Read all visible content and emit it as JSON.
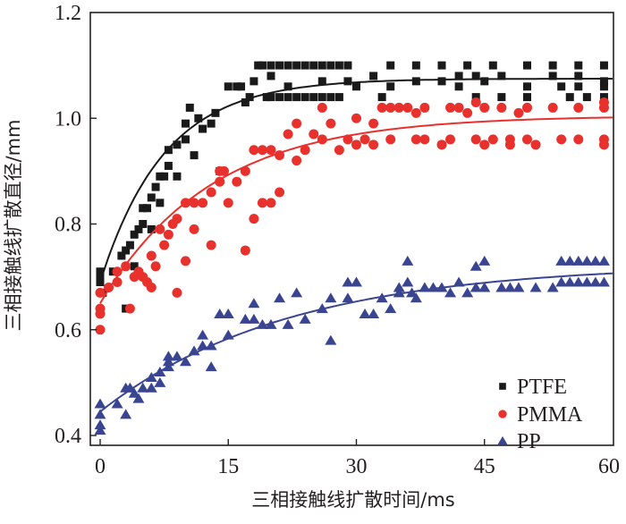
{
  "chart_data": {
    "type": "scatter",
    "title": "",
    "xlabel": "三相接触线扩散时间/ms",
    "ylabel": "三相接触线扩散直径/mm",
    "xlim": [
      -1,
      60
    ],
    "ylim": [
      0.4,
      1.2
    ],
    "xticks": [
      0,
      15,
      30,
      45,
      60
    ],
    "xtick_labels": [
      "0",
      "15",
      "30",
      "45",
      "60"
    ],
    "yticks": [
      0.4,
      0.6,
      0.8,
      1.0,
      1.2
    ],
    "ytick_labels": [
      "0.4",
      "0.6",
      "0.8",
      "1.0",
      "1.2"
    ],
    "grid": false,
    "legend": {
      "position": "bottom-right",
      "entries": [
        "PTFE",
        "PMMA",
        "PP"
      ]
    },
    "series": [
      {
        "name": "PTFE",
        "marker": "square",
        "color": "#1a1a1a",
        "fit": {
          "type": "exponential-rise",
          "y0": 0.69,
          "plateau": 1.075,
          "tau": 7.5
        },
        "points": [
          [
            0,
            0.71
          ],
          [
            0,
            0.7
          ],
          [
            0,
            0.69
          ],
          [
            0.3,
            0.67
          ],
          [
            1.5,
            0.71
          ],
          [
            2.5,
            0.74
          ],
          [
            3,
            0.75
          ],
          [
            3,
            0.64
          ],
          [
            3.5,
            0.76
          ],
          [
            4,
            0.78
          ],
          [
            4,
            0.72
          ],
          [
            4.5,
            0.79
          ],
          [
            5,
            0.8
          ],
          [
            5,
            0.83
          ],
          [
            5.5,
            0.83
          ],
          [
            6,
            0.85
          ],
          [
            6,
            0.79
          ],
          [
            6.5,
            0.87
          ],
          [
            7,
            0.89
          ],
          [
            7,
            0.84
          ],
          [
            7.5,
            0.89
          ],
          [
            8,
            0.91
          ],
          [
            8,
            0.94
          ],
          [
            9,
            0.95
          ],
          [
            9,
            0.89
          ],
          [
            10,
            0.96
          ],
          [
            10,
            0.99
          ],
          [
            10.5,
            1.02
          ],
          [
            11,
            0.93
          ],
          [
            11.5,
            1.0
          ],
          [
            12,
            0.98
          ],
          [
            13,
            0.99
          ],
          [
            13.5,
            1.01
          ],
          [
            14,
            0.9
          ],
          [
            15,
            1.06
          ],
          [
            16,
            1.06
          ],
          [
            16.5,
            1.06
          ],
          [
            17,
            1.03
          ],
          [
            17.5,
            1.04
          ],
          [
            18,
            1.07
          ],
          [
            18.5,
            1.1
          ],
          [
            19,
            1.1
          ],
          [
            19.5,
            1.04
          ],
          [
            20,
            1.1
          ],
          [
            21,
            1.1
          ],
          [
            22,
            1.1
          ],
          [
            23,
            1.1
          ],
          [
            24,
            1.1
          ],
          [
            25,
            1.1
          ],
          [
            26,
            1.1
          ],
          [
            27,
            1.1
          ],
          [
            28,
            1.1
          ],
          [
            29,
            1.1
          ],
          [
            20,
            1.04
          ],
          [
            21,
            1.04
          ],
          [
            22,
            1.04
          ],
          [
            23,
            1.04
          ],
          [
            24,
            1.04
          ],
          [
            25,
            1.04
          ],
          [
            26,
            1.04
          ],
          [
            27,
            1.04
          ],
          [
            28,
            1.04
          ],
          [
            20,
            1.08
          ],
          [
            22,
            1.06
          ],
          [
            26,
            1.07
          ],
          [
            29,
            1.07
          ],
          [
            30,
            1.06
          ],
          [
            32,
            1.08
          ],
          [
            33,
            1.04
          ],
          [
            34,
            1.06
          ],
          [
            34,
            1.1
          ],
          [
            37,
            1.07
          ],
          [
            37,
            1.1
          ],
          [
            40,
            1.07
          ],
          [
            40,
            1.1
          ],
          [
            42,
            1.08
          ],
          [
            42,
            1.06
          ],
          [
            43,
            1.1
          ],
          [
            44,
            1.08
          ],
          [
            44,
            1.04
          ],
          [
            45,
            1.07
          ],
          [
            46,
            1.1
          ],
          [
            47,
            1.08
          ],
          [
            47,
            1.04
          ],
          [
            50,
            1.06
          ],
          [
            50,
            1.1
          ],
          [
            50,
            1.04
          ],
          [
            53,
            1.08
          ],
          [
            53,
            1.1
          ],
          [
            54,
            1.06
          ],
          [
            55,
            1.04
          ],
          [
            56,
            1.08
          ],
          [
            56,
            1.1
          ],
          [
            56,
            1.06
          ],
          [
            57,
            1.04
          ],
          [
            59,
            1.1
          ],
          [
            59,
            1.07
          ],
          [
            59,
            1.06
          ],
          [
            59,
            1.04
          ]
        ]
      },
      {
        "name": "PMMA",
        "marker": "circle",
        "color": "#e8312d",
        "fit": {
          "type": "exponential-rise",
          "y0": 0.65,
          "plateau": 1.005,
          "tau": 13
        },
        "points": [
          [
            0,
            0.67
          ],
          [
            0,
            0.64
          ],
          [
            0,
            0.63
          ],
          [
            0,
            0.6
          ],
          [
            1,
            0.68
          ],
          [
            2,
            0.69
          ],
          [
            2,
            0.71
          ],
          [
            3,
            0.72
          ],
          [
            3.5,
            0.64
          ],
          [
            4,
            0.7
          ],
          [
            4.5,
            0.71
          ],
          [
            5,
            0.7
          ],
          [
            5.5,
            0.69
          ],
          [
            6,
            0.74
          ],
          [
            6,
            0.68
          ],
          [
            6.5,
            0.72
          ],
          [
            7,
            0.79
          ],
          [
            7.5,
            0.76
          ],
          [
            8,
            0.78
          ],
          [
            8.5,
            0.8
          ],
          [
            9,
            0.81
          ],
          [
            9,
            0.67
          ],
          [
            10,
            0.73
          ],
          [
            10,
            0.84
          ],
          [
            11,
            0.84
          ],
          [
            11,
            0.79
          ],
          [
            12,
            0.84
          ],
          [
            13,
            0.86
          ],
          [
            13,
            0.76
          ],
          [
            14,
            0.9
          ],
          [
            14,
            0.88
          ],
          [
            14.5,
            0.9
          ],
          [
            15,
            0.84
          ],
          [
            16,
            0.88
          ],
          [
            17,
            0.9
          ],
          [
            17,
            0.75
          ],
          [
            18,
            0.94
          ],
          [
            18,
            0.81
          ],
          [
            19,
            0.94
          ],
          [
            19,
            0.84
          ],
          [
            20,
            0.94
          ],
          [
            20,
            0.84
          ],
          [
            21,
            0.93
          ],
          [
            21,
            0.86
          ],
          [
            22,
            0.97
          ],
          [
            23,
            0.99
          ],
          [
            23,
            0.92
          ],
          [
            24,
            0.94
          ],
          [
            25,
            0.97
          ],
          [
            26,
            1.02
          ],
          [
            26,
            0.96
          ],
          [
            27,
            0.99
          ],
          [
            28,
            0.94
          ],
          [
            29,
            0.96
          ],
          [
            30,
            1.0
          ],
          [
            30,
            0.95
          ],
          [
            31,
            0.96
          ],
          [
            32,
            0.99
          ],
          [
            32,
            0.95
          ],
          [
            33,
            1.02
          ],
          [
            34,
            1.02
          ],
          [
            34,
            0.96
          ],
          [
            35,
            1.02
          ],
          [
            36,
            1.02
          ],
          [
            37,
            1.01
          ],
          [
            37,
            0.96
          ],
          [
            38,
            0.96
          ],
          [
            38,
            1.02
          ],
          [
            40,
            0.95
          ],
          [
            41,
            0.96
          ],
          [
            41,
            1.02
          ],
          [
            42,
            1.02
          ],
          [
            43,
            1.01
          ],
          [
            44,
            1.03
          ],
          [
            44,
            0.96
          ],
          [
            45,
            1.02
          ],
          [
            45,
            0.95
          ],
          [
            46,
            0.96
          ],
          [
            47,
            1.02
          ],
          [
            48,
            0.95
          ],
          [
            48,
            0.96
          ],
          [
            49,
            1.01
          ],
          [
            50,
            1.02
          ],
          [
            50,
            0.96
          ],
          [
            51,
            0.95
          ],
          [
            53,
            1.02
          ],
          [
            54,
            0.96
          ],
          [
            56,
            1.02
          ],
          [
            56,
            0.96
          ],
          [
            59,
            1.02
          ],
          [
            59,
            1.03
          ],
          [
            59,
            0.96
          ],
          [
            59,
            0.95
          ]
        ]
      },
      {
        "name": "PP",
        "marker": "triangle",
        "color": "#3a4592",
        "fit": {
          "type": "exponential-rise",
          "y0": 0.445,
          "plateau": 0.725,
          "tau": 22
        },
        "points": [
          [
            0,
            0.46
          ],
          [
            0,
            0.44
          ],
          [
            0,
            0.42
          ],
          [
            0,
            0.41
          ],
          [
            2,
            0.46
          ],
          [
            3,
            0.44
          ],
          [
            3,
            0.49
          ],
          [
            3.5,
            0.49
          ],
          [
            4,
            0.48
          ],
          [
            4.5,
            0.47
          ],
          [
            5,
            0.49
          ],
          [
            6,
            0.49
          ],
          [
            6,
            0.51
          ],
          [
            7,
            0.52
          ],
          [
            7,
            0.5
          ],
          [
            8,
            0.55
          ],
          [
            8,
            0.54
          ],
          [
            8,
            0.53
          ],
          [
            9,
            0.55
          ],
          [
            10,
            0.54
          ],
          [
            11,
            0.56
          ],
          [
            12,
            0.57
          ],
          [
            12,
            0.59
          ],
          [
            13,
            0.57
          ],
          [
            13,
            0.53
          ],
          [
            14,
            0.63
          ],
          [
            15,
            0.63
          ],
          [
            15,
            0.59
          ],
          [
            17,
            0.62
          ],
          [
            18,
            0.65
          ],
          [
            18,
            0.62
          ],
          [
            19,
            0.61
          ],
          [
            20,
            0.61
          ],
          [
            21,
            0.66
          ],
          [
            22,
            0.61
          ],
          [
            23,
            0.67
          ],
          [
            24,
            0.62
          ],
          [
            26,
            0.64
          ],
          [
            27,
            0.58
          ],
          [
            27,
            0.66
          ],
          [
            29,
            0.69
          ],
          [
            29,
            0.66
          ],
          [
            30,
            0.69
          ],
          [
            31,
            0.63
          ],
          [
            32,
            0.63
          ],
          [
            33,
            0.66
          ],
          [
            34,
            0.64
          ],
          [
            35,
            0.68
          ],
          [
            35,
            0.67
          ],
          [
            36,
            0.69
          ],
          [
            36,
            0.73
          ],
          [
            36.5,
            0.67
          ],
          [
            37,
            0.66
          ],
          [
            38,
            0.68
          ],
          [
            39,
            0.68
          ],
          [
            40,
            0.68
          ],
          [
            41,
            0.67
          ],
          [
            42,
            0.69
          ],
          [
            43,
            0.67
          ],
          [
            44,
            0.68
          ],
          [
            44,
            0.72
          ],
          [
            45,
            0.73
          ],
          [
            45,
            0.68
          ],
          [
            47,
            0.68
          ],
          [
            48,
            0.68
          ],
          [
            49,
            0.68
          ],
          [
            51,
            0.68
          ],
          [
            53,
            0.68
          ],
          [
            54,
            0.69
          ],
          [
            54,
            0.73
          ],
          [
            55,
            0.69
          ],
          [
            55,
            0.73
          ],
          [
            56,
            0.69
          ],
          [
            56,
            0.73
          ],
          [
            57,
            0.69
          ],
          [
            57,
            0.73
          ],
          [
            58,
            0.69
          ],
          [
            58,
            0.73
          ],
          [
            59,
            0.69
          ],
          [
            59,
            0.73
          ]
        ]
      }
    ]
  }
}
